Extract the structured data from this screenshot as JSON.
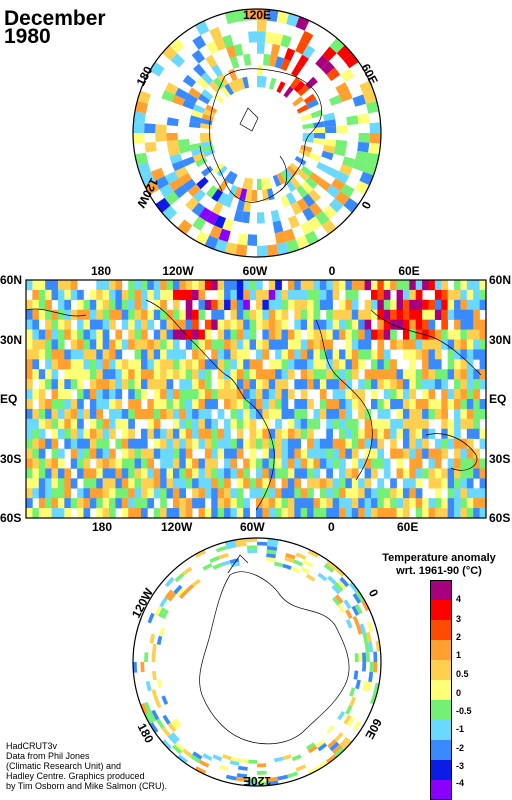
{
  "title": {
    "month": "December",
    "year": "1980"
  },
  "north_pole_labels": {
    "top": "120E",
    "right": "60E",
    "left": "180",
    "lower_left": "120W",
    "lower_right": "0"
  },
  "world_map": {
    "lat_labels": [
      "60N",
      "30N",
      "EQ",
      "30S",
      "60S"
    ],
    "lon_labels": [
      "180",
      "120W",
      "60W",
      "0",
      "60E"
    ]
  },
  "south_pole_labels": {
    "upper_left": "120W",
    "upper_right": "0",
    "lower_left": "180",
    "lower_right": "60E",
    "bottom": "120E"
  },
  "legend": {
    "title_line1": "Temperature anomaly",
    "title_line2": "wrt. 1961-90  (°C)",
    "labels": [
      "4",
      "3",
      "2",
      "1",
      "0.5",
      "0",
      "-0.5",
      "-1",
      "-2",
      "-3",
      "-4"
    ],
    "colors": [
      "#a7007f",
      "#ff0000",
      "#ff4a00",
      "#ffa030",
      "#ffd050",
      "#ffff78",
      "#74f074",
      "#6ad8ff",
      "#3a8aff",
      "#0a1ce6",
      "#8a00ff"
    ]
  },
  "credits": [
    "HadCRUT3v",
    "Data from Phil Jones",
    "(Climatic Research Unit) and",
    "Hadley Centre.  Graphics produced",
    "by Tim Osborn and Mike Salmon (CRU)."
  ]
}
